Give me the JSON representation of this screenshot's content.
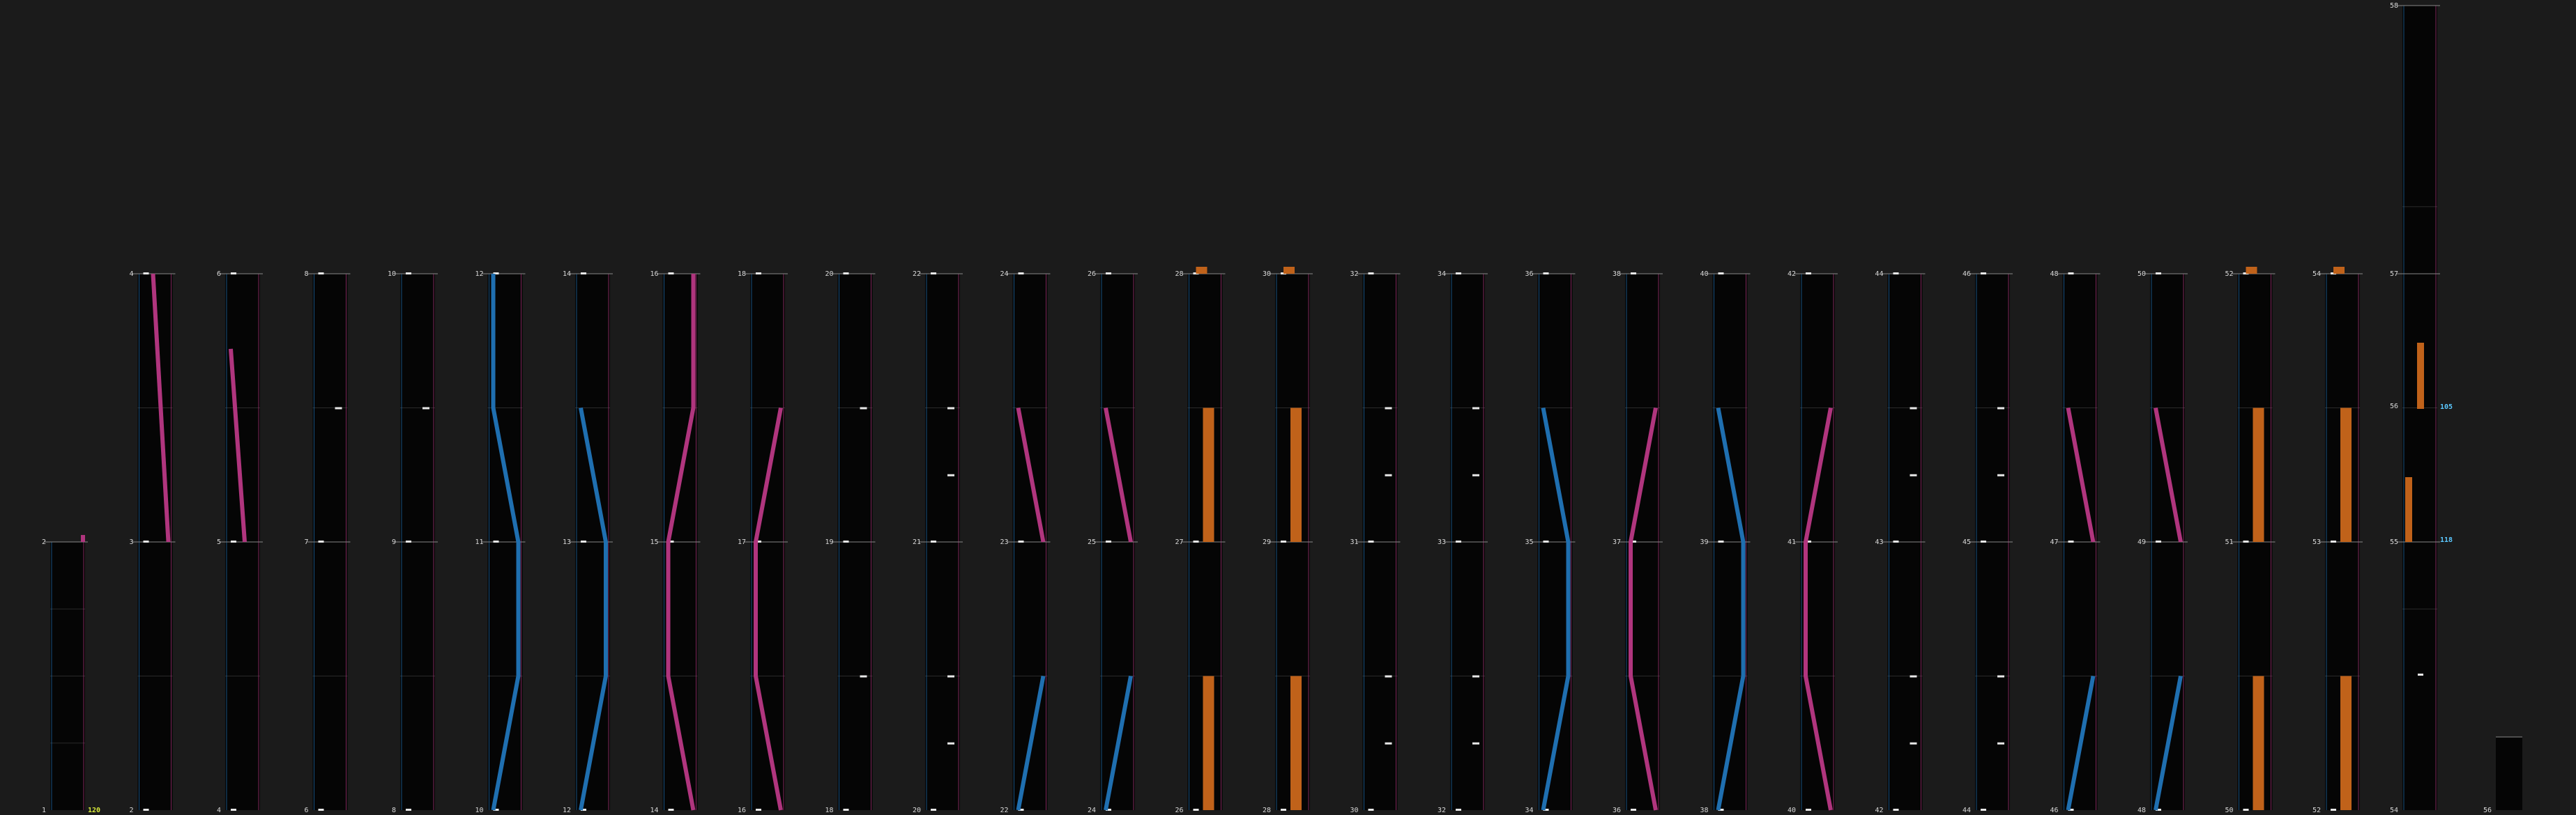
{
  "theme": {
    "background": "#1b1b1b",
    "cell_background": "#050505",
    "grid": "#2a2a2a",
    "blue": "#1f6fb0",
    "magenta": "#b0357e",
    "orange": "#c0621a",
    "marker": "#e8e8e8",
    "value_yellow": "#d7e83a",
    "value_cyan": "#5bc8ff"
  },
  "labels": {
    "bottom_row": [
      "1",
      "2",
      "4",
      "6",
      "8",
      "10",
      "12",
      "14",
      "16",
      "18",
      "20",
      "22",
      "24",
      "26",
      "28",
      "30",
      "32",
      "34",
      "36",
      "38",
      "40",
      "42",
      "44",
      "46",
      "48",
      "50",
      "52",
      "54",
      "56"
    ],
    "middle_row": [
      "2",
      "3",
      "5",
      "7",
      "9",
      "11",
      "13",
      "15",
      "17",
      "19",
      "21",
      "23",
      "25",
      "27",
      "29",
      "31",
      "33",
      "35",
      "37",
      "39",
      "41",
      "43",
      "45",
      "47",
      "49",
      "51",
      "53",
      "55"
    ],
    "top_row": [
      "4",
      "6",
      "8",
      "10",
      "12",
      "14",
      "16",
      "18",
      "20",
      "22",
      "24",
      "26",
      "28",
      "30",
      "32",
      "34",
      "36",
      "38",
      "40",
      "42",
      "44",
      "46",
      "48",
      "50",
      "52",
      "54",
      "57"
    ],
    "tall_top": "58"
  },
  "values": {
    "first_column": "120",
    "tall_mid": "105",
    "tall_low": "118"
  },
  "columns": [
    {
      "kind": "none"
    },
    {
      "kind": "line",
      "color": "magenta",
      "pts": [
        [
          0.45,
          0
        ],
        [
          1.0,
          1
        ]
      ]
    },
    {
      "kind": "line",
      "color": "magenta",
      "pts": [
        [
          0.1,
          0.28
        ],
        [
          0.6,
          1
        ]
      ]
    },
    {
      "kind": "marker",
      "ys": [
        0.5
      ]
    },
    {
      "kind": "marker",
      "ys": [
        0.5
      ]
    },
    {
      "kind": "line",
      "color": "blue",
      "pts": [
        [
          0.1,
          0
        ],
        [
          0.1,
          0.5
        ],
        [
          1.0,
          1
        ],
        [
          1.0,
          1.5
        ],
        [
          0.1,
          2
        ]
      ]
    },
    {
      "kind": "line",
      "color": "blue",
      "pts": [
        [
          0.1,
          0.5
        ],
        [
          1.0,
          1
        ],
        [
          1.0,
          1.5
        ],
        [
          0.1,
          2
        ]
      ]
    },
    {
      "kind": "line",
      "color": "magenta",
      "pts": [
        [
          1.0,
          0
        ],
        [
          1.0,
          0.5
        ],
        [
          0.1,
          1
        ],
        [
          0.1,
          1.5
        ],
        [
          1.0,
          2
        ]
      ]
    },
    {
      "kind": "line",
      "color": "magenta",
      "pts": [
        [
          1.0,
          0.5
        ],
        [
          0.1,
          1
        ],
        [
          0.1,
          1.5
        ],
        [
          1.0,
          2
        ]
      ]
    },
    {
      "kind": "marker",
      "ys": [
        0.5,
        1.5
      ]
    },
    {
      "kind": "marker",
      "ys": [
        0.5,
        0.75,
        1.5,
        1.75
      ]
    },
    {
      "kind": "vline",
      "color": "magenta",
      "pts": [
        [
          0.1,
          0.5
        ],
        [
          1.0,
          1
        ]
      ],
      "color2": "blue",
      "pts2": [
        [
          1.0,
          1.5
        ],
        [
          0.1,
          2
        ]
      ]
    },
    {
      "kind": "vline",
      "color": "magenta",
      "pts": [
        [
          0.1,
          0.5
        ],
        [
          1.0,
          1
        ]
      ],
      "color2": "blue",
      "pts2": [
        [
          1.0,
          1.5
        ],
        [
          0.1,
          2
        ]
      ]
    },
    {
      "kind": "bar",
      "ranges": [
        [
          0.5,
          1
        ],
        [
          1.5,
          2
        ]
      ]
    },
    {
      "kind": "bar",
      "ranges": [
        [
          0.5,
          1
        ],
        [
          1.5,
          2
        ]
      ]
    },
    {
      "kind": "marker",
      "ys": [
        0.5,
        0.75,
        1.5,
        1.75
      ]
    },
    {
      "kind": "marker",
      "ys": [
        0.5,
        0.75,
        1.5,
        1.75
      ]
    },
    {
      "kind": "line",
      "color": "blue",
      "pts": [
        [
          0.1,
          0.5
        ],
        [
          1.0,
          1
        ],
        [
          1.0,
          1.5
        ],
        [
          0.1,
          2
        ]
      ]
    },
    {
      "kind": "line",
      "color": "magenta",
      "pts": [
        [
          1.0,
          0.5
        ],
        [
          0.1,
          1
        ],
        [
          0.1,
          1.5
        ],
        [
          1.0,
          2
        ]
      ]
    },
    {
      "kind": "line",
      "color": "blue",
      "pts": [
        [
          0.1,
          0.5
        ],
        [
          1.0,
          1
        ],
        [
          1.0,
          1.5
        ],
        [
          0.1,
          2
        ]
      ]
    },
    {
      "kind": "line",
      "color": "magenta",
      "pts": [
        [
          1.0,
          0.5
        ],
        [
          0.1,
          1
        ],
        [
          0.1,
          1.5
        ],
        [
          1.0,
          2
        ]
      ]
    },
    {
      "kind": "marker",
      "ys": [
        0.5,
        0.75,
        1.5,
        1.75
      ]
    },
    {
      "kind": "marker",
      "ys": [
        0.5,
        0.75,
        1.5,
        1.75
      ]
    },
    {
      "kind": "vline",
      "color": "magenta",
      "pts": [
        [
          0.1,
          0.5
        ],
        [
          1.0,
          1
        ]
      ],
      "color2": "blue",
      "pts2": [
        [
          1.0,
          1.5
        ],
        [
          0.1,
          2
        ]
      ]
    },
    {
      "kind": "vline",
      "color": "magenta",
      "pts": [
        [
          0.1,
          0.5
        ],
        [
          1.0,
          1
        ]
      ],
      "color2": "blue",
      "pts2": [
        [
          1.0,
          1.5
        ],
        [
          0.1,
          2
        ]
      ]
    },
    {
      "kind": "bar",
      "ranges": [
        [
          0.5,
          1
        ],
        [
          1.5,
          2
        ]
      ]
    },
    {
      "kind": "bar",
      "ranges": [
        [
          0.5,
          1
        ],
        [
          1.5,
          2
        ]
      ]
    },
    {
      "kind": "tall"
    },
    {
      "kind": "small"
    }
  ]
}
